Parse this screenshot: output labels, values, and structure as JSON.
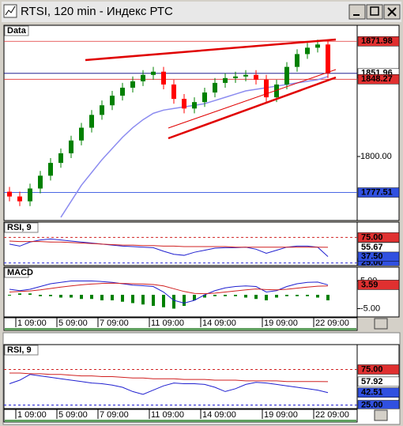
{
  "window": {
    "title": "RTSI, 120 min - Индекс РТС"
  },
  "chart_data": [
    {
      "type": "candlestick",
      "label": "Data",
      "categories": [
        null,
        "1 09:00",
        null,
        null,
        null,
        "5 09:00",
        null,
        null,
        null,
        "7 09:00",
        null,
        null,
        null,
        null,
        "11 09:00",
        null,
        null,
        null,
        null,
        "14 09:00",
        null,
        null,
        null,
        null,
        null,
        "19 09:00",
        null,
        null,
        null,
        null,
        "22 09:00",
        null
      ],
      "open": [
        1778,
        1775,
        1772,
        1780,
        1788,
        1796,
        1802,
        1810,
        1818,
        1826,
        1832,
        1838,
        1843,
        1847,
        1851,
        1853,
        1845,
        1836,
        1830,
        1834,
        1840,
        1846,
        1849,
        1850,
        1851,
        1848,
        1837,
        1845,
        1856,
        1864,
        1868,
        1870
      ],
      "high": [
        1781,
        1778,
        1783,
        1791,
        1799,
        1805,
        1813,
        1821,
        1829,
        1835,
        1841,
        1846,
        1850,
        1854,
        1856,
        1856,
        1848,
        1839,
        1837,
        1843,
        1849,
        1852,
        1853,
        1854,
        1854,
        1851,
        1848,
        1859,
        1867,
        1871,
        1873,
        1873
      ],
      "low": [
        1772,
        1769,
        1769,
        1777,
        1785,
        1793,
        1799,
        1807,
        1815,
        1823,
        1829,
        1835,
        1840,
        1844,
        1848,
        1842,
        1833,
        1827,
        1827,
        1831,
        1837,
        1843,
        1846,
        1847,
        1845,
        1834,
        1834,
        1842,
        1853,
        1861,
        1865,
        1849
      ],
      "close": [
        1775,
        1772,
        1780,
        1788,
        1796,
        1802,
        1810,
        1818,
        1826,
        1832,
        1838,
        1843,
        1847,
        1851,
        1853,
        1845,
        1836,
        1830,
        1834,
        1840,
        1846,
        1849,
        1850,
        1851,
        1848,
        1837,
        1845,
        1856,
        1864,
        1868,
        1870,
        1852
      ],
      "up_color": "#008000",
      "down_color": "#ff0000",
      "ma": {
        "color": "#8c8cf0",
        "values": [
          null,
          null,
          null,
          null,
          null,
          1762,
          1772,
          1782,
          1790,
          1798,
          1805,
          1812,
          1818,
          1823,
          1827,
          1829,
          1830,
          1831,
          1832,
          1833,
          1835,
          1837,
          1839,
          1841,
          1842,
          1843,
          1844,
          1845,
          1846,
          1847,
          1848,
          1850
        ]
      },
      "ylim": [
        1760,
        1882
      ],
      "yticks": [
        {
          "value": 1800,
          "label": "1800.00"
        }
      ],
      "levels": [
        {
          "value": 1871.98,
          "label": "1871.98",
          "color": "#e03030"
        },
        {
          "value": 1851.96,
          "label": "1851.96",
          "color": "#ffffff"
        },
        {
          "value": 1848.27,
          "label": "1848.27",
          "color": "#e03030"
        },
        {
          "value": 1777.51,
          "label": "1777.51",
          "color": "#3050e0"
        }
      ]
    },
    {
      "type": "line",
      "label": "RSI, 9",
      "ylim": [
        20,
        105
      ],
      "yticks": [
        {
          "value": 25,
          "label": "25.00"
        },
        {
          "value": 75,
          "label": "75.00"
        }
      ],
      "series": [
        {
          "color": "#2020d0",
          "values": [
            62,
            58,
            66,
            70,
            72,
            70,
            68,
            66,
            64,
            62,
            60,
            58,
            57,
            56,
            55,
            48,
            42,
            40,
            46,
            50,
            54,
            55,
            55,
            56,
            52,
            44,
            50,
            56,
            58,
            58,
            56,
            37.5
          ],
          "value_label": "37.50"
        },
        {
          "color": "#d02020",
          "values": [
            68,
            67,
            67,
            67,
            66,
            66,
            65,
            64,
            63,
            62,
            61,
            60,
            60,
            59,
            59,
            58,
            58,
            57,
            57,
            57,
            57,
            57,
            56,
            56,
            56,
            56,
            56,
            56,
            56,
            56,
            56,
            55.67
          ],
          "value_label": "55.67"
        }
      ]
    },
    {
      "type": "macd",
      "label": "MACD",
      "ylim": [
        -8,
        10
      ],
      "yticks": [
        {
          "value": 5,
          "label": "5.00"
        },
        {
          "value": -5,
          "label": "-5.00"
        }
      ],
      "histogram": {
        "color": "#008000",
        "values": [
          0,
          0.5,
          0.5,
          -0.5,
          -0.5,
          -1,
          -1,
          -1.5,
          -1.5,
          -2,
          -2,
          -2.5,
          -3,
          -3.5,
          -4,
          -4.5,
          -5,
          -4,
          -2,
          -1,
          -0.5,
          -0.5,
          -0.5,
          -1,
          -1.5,
          -2,
          -1,
          -0.5,
          -0.5,
          -0.5,
          -1,
          -2
        ]
      },
      "series": [
        {
          "color": "#2020d0",
          "values": [
            2,
            1.5,
            2,
            3,
            4,
            4.5,
            5,
            5,
            5,
            4.8,
            4.5,
            4,
            3.5,
            3.3,
            3,
            1,
            -2,
            -3,
            -2,
            0,
            1.5,
            2.5,
            3,
            3.2,
            3,
            1,
            1.5,
            3,
            4,
            4.5,
            4.6,
            3.59
          ],
          "value_label": "3.59"
        },
        {
          "color": "#d02020",
          "values": [
            1,
            1.2,
            1.4,
            1.8,
            2.3,
            2.8,
            3.2,
            3.6,
            3.9,
            4.1,
            4.2,
            4.1,
            4,
            3.9,
            3.7,
            3.2,
            2.2,
            1.2,
            0.5,
            0.4,
            0.6,
            1,
            1.4,
            1.8,
            2.1,
            1.9,
            1.8,
            2,
            2.4,
            2.8,
            3.1,
            3.2
          ]
        }
      ]
    },
    {
      "type": "line",
      "label": "RSI, 9",
      "ylim": [
        20,
        110
      ],
      "categories": [
        null,
        "1 09:00",
        null,
        null,
        null,
        "5 09:00",
        null,
        null,
        null,
        "7 09:00",
        null,
        null,
        null,
        null,
        "11 09:00",
        null,
        null,
        null,
        null,
        "14 09:00",
        null,
        null,
        null,
        null,
        null,
        "19 09:00",
        null,
        null,
        null,
        null,
        "22 09:00",
        null
      ],
      "yticks": [
        {
          "value": 25,
          "label": "25.00"
        },
        {
          "value": 75,
          "label": "75.00"
        }
      ],
      "series": [
        {
          "color": "#2020d0",
          "values": [
            55,
            60,
            68,
            66,
            64,
            62,
            60,
            58,
            56,
            55,
            53,
            50,
            44,
            40,
            46,
            52,
            56,
            55,
            55,
            54,
            50,
            44,
            48,
            54,
            57,
            56,
            54,
            52,
            50,
            48,
            46,
            42.51
          ],
          "value_label": "42.51"
        },
        {
          "color": "#d02020",
          "values": [
            70,
            70,
            69,
            69,
            68,
            68,
            67,
            66,
            66,
            65,
            65,
            64,
            63,
            63,
            62,
            62,
            62,
            61,
            61,
            61,
            60,
            60,
            60,
            59,
            59,
            59,
            59,
            58,
            58,
            58,
            58,
            57.92
          ],
          "value_label": "57.92"
        }
      ]
    }
  ]
}
